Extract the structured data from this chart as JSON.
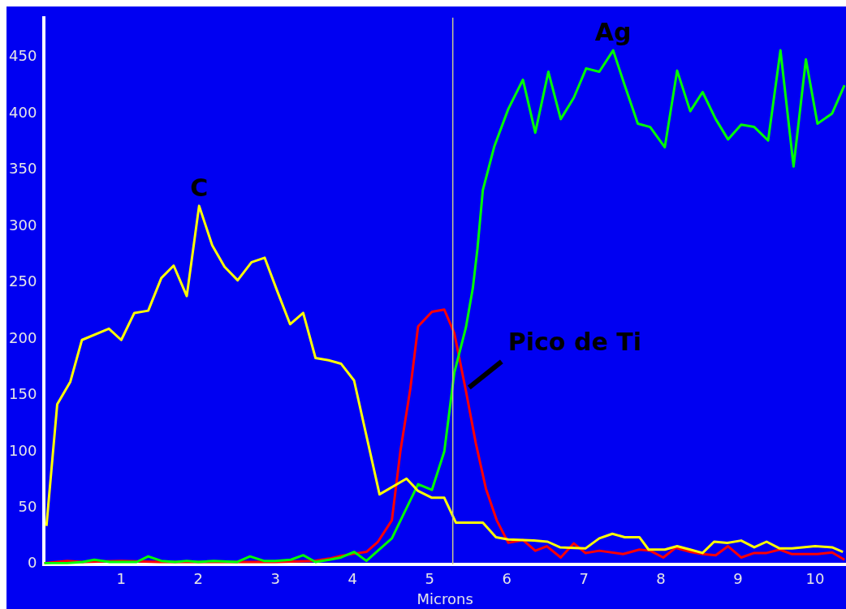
{
  "chart_data": {
    "type": "line",
    "xlabel": "Microns",
    "xlim": [
      0,
      10.4
    ],
    "xticks": [
      1,
      2,
      3,
      4,
      5,
      6,
      7,
      8,
      9,
      10
    ],
    "ylim": [
      0,
      485
    ],
    "yticks": [
      0,
      50,
      100,
      150,
      200,
      250,
      300,
      350,
      400,
      450
    ],
    "grid": false,
    "legend": false,
    "marker": "none",
    "line_style": "solid",
    "x": [
      0.03,
      0.17,
      0.34,
      0.49,
      0.84,
      1.0,
      1.17,
      1.35,
      1.52,
      1.68,
      1.85,
      2.01,
      2.18,
      2.34,
      2.51,
      2.69,
      2.86,
      3.02,
      3.19,
      3.36,
      3.52,
      3.69,
      3.85,
      4.02,
      4.35,
      4.7,
      4.85,
      5.03,
      5.19,
      5.34,
      5.69,
      5.86,
      6.02,
      6.35,
      6.53,
      6.69,
      7.02,
      7.2,
      7.37,
      7.53,
      7.72,
      7.84,
      8.05,
      8.21,
      8.38,
      8.54,
      8.69,
      8.86,
      9.04,
      9.21,
      9.37,
      9.54,
      9.7,
      10.0,
      10.22,
      10.36
    ],
    "series": [
      {
        "name": "C",
        "color": "#ffff00",
        "values": [
          34,
          142,
          162,
          199,
          209,
          199,
          223,
          225,
          254,
          265,
          238,
          318,
          283,
          264,
          252,
          268,
          272,
          243,
          213,
          223,
          183,
          181,
          178,
          163,
          62,
          76,
          65,
          59,
          59,
          37,
          37,
          24,
          22,
          21,
          20,
          15,
          14,
          23,
          27,
          24,
          24,
          13,
          13,
          16,
          13,
          10,
          20,
          19,
          21,
          15,
          20,
          14,
          14,
          16,
          15,
          11
        ]
      },
      {
        "name": "Ag",
        "color": "#00ff00",
        "x": [
          0,
          0.3,
          0.5,
          0.65,
          0.85,
          1.0,
          1.2,
          1.35,
          1.52,
          1.7,
          1.85,
          2.0,
          2.2,
          2.5,
          2.67,
          2.85,
          3.0,
          3.2,
          3.36,
          3.52,
          3.7,
          3.85,
          4.02,
          4.18,
          4.51,
          4.85,
          5.03,
          5.19,
          5.32,
          5.47,
          5.56,
          5.62,
          5.69,
          5.84,
          6.02,
          6.21,
          6.37,
          6.54,
          6.7,
          6.87,
          7.03,
          7.2,
          7.38,
          7.53,
          7.7,
          7.86,
          8.05,
          8.21,
          8.38,
          8.54,
          8.71,
          8.87,
          9.04,
          9.21,
          9.39,
          9.55,
          9.72,
          9.88,
          10.03,
          10.22,
          10.38
        ],
        "values": [
          1,
          1,
          2,
          4,
          2,
          2,
          2,
          7,
          3,
          2,
          3,
          2,
          3,
          2,
          7,
          3,
          3,
          4,
          8,
          2,
          4,
          6,
          11,
          3,
          23,
          71,
          66,
          100,
          170,
          210,
          245,
          280,
          332,
          371,
          404,
          430,
          383,
          437,
          395,
          414,
          440,
          437,
          456,
          425,
          391,
          388,
          370,
          438,
          402,
          419,
          395,
          377,
          390,
          388,
          376,
          456,
          353,
          448,
          391,
          400,
          425
        ]
      },
      {
        "color": "#ff0000",
        "x": [
          0,
          0.3,
          0.5,
          1.0,
          1.5,
          2.0,
          3.0,
          3.5,
          3.7,
          3.85,
          4.18,
          4.33,
          4.51,
          4.62,
          4.75,
          4.85,
          5.03,
          5.19,
          5.32,
          5.47,
          5.6,
          5.73,
          5.87,
          6.02,
          6.21,
          6.37,
          6.52,
          6.7,
          6.87,
          7.02,
          7.2,
          7.51,
          7.72,
          7.86,
          8.03,
          8.19,
          8.38,
          8.54,
          8.71,
          8.87,
          9.04,
          9.21,
          9.37,
          9.54,
          9.7,
          10.03,
          10.22,
          10.38
        ],
        "values": [
          1,
          3,
          2,
          3,
          2,
          2,
          2,
          3,
          5,
          7.5,
          11,
          20,
          39,
          100,
          156,
          211,
          224,
          226,
          205,
          154,
          107,
          67,
          39,
          19,
          21.5,
          12,
          16,
          6,
          18.5,
          10,
          12,
          9,
          13,
          12,
          6,
          14.5,
          11,
          9,
          8,
          16,
          6,
          10,
          10,
          13,
          9,
          9,
          10.5,
          4
        ]
      }
    ],
    "ref_lines": [
      {
        "axis": "x",
        "value": 5.3,
        "color": "#c8c890"
      }
    ],
    "annotations": [
      {
        "text": "Pico de Ti",
        "x": 5.47,
        "y": 154
      }
    ]
  }
}
